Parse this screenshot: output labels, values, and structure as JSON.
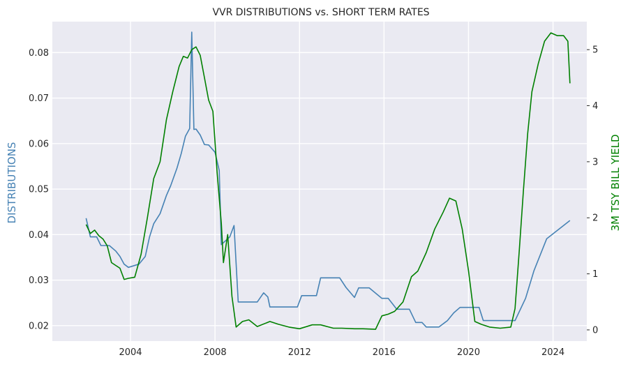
{
  "chart_data": {
    "type": "line",
    "title": "VVR DISTRIBUTIONS vs. SHORT TERM RATES",
    "xlabel": "",
    "xlim": [
      2000.3,
      2025.6
    ],
    "x_ticks": [
      2004,
      2008,
      2012,
      2016,
      2020,
      2024
    ],
    "x_tick_labels": [
      "2004",
      "2008",
      "2012",
      "2016",
      "2020",
      "2024"
    ],
    "left_axis": {
      "label": "DISTRIBUTIONS",
      "color": "#4682b4",
      "ylim": [
        0.0166,
        0.0868
      ],
      "ticks": [
        0.02,
        0.03,
        0.04,
        0.05,
        0.06,
        0.07,
        0.08
      ],
      "tick_labels": [
        "0.02",
        "0.03",
        "0.04",
        "0.05",
        "0.06",
        "0.07",
        "0.08"
      ]
    },
    "right_axis": {
      "label": "3M TSY BILL YIELD",
      "color": "#008000",
      "ylim": [
        -0.2,
        5.5
      ],
      "ticks": [
        0,
        1,
        2,
        3,
        4,
        5
      ],
      "tick_labels": [
        "0",
        "1",
        "2",
        "3",
        "4",
        "5"
      ]
    },
    "grid": true,
    "background": "#eaeaf2",
    "series": [
      {
        "name": "DISTRIBUTIONS",
        "axis": "left",
        "color": "#4682b4",
        "x": [
          2001.9,
          2002.1,
          2002.4,
          2002.6,
          2003.0,
          2003.3,
          2003.5,
          2003.7,
          2003.9,
          2004.4,
          2004.7,
          2004.9,
          2005.1,
          2005.4,
          2005.7,
          2005.9,
          2006.2,
          2006.4,
          2006.6,
          2006.8,
          2006.9,
          2007.0,
          2007.1,
          2007.3,
          2007.5,
          2007.7,
          2008.0,
          2008.2,
          2008.3,
          2008.7,
          2008.9,
          2009.1,
          2009.5,
          2010.0,
          2010.3,
          2010.5,
          2010.6,
          2011.2,
          2011.9,
          2012.1,
          2012.8,
          2013.0,
          2013.9,
          2014.2,
          2014.6,
          2014.8,
          2015.3,
          2015.9,
          2016.2,
          2016.4,
          2016.6,
          2017.2,
          2017.5,
          2017.8,
          2018.0,
          2018.6,
          2019.0,
          2019.3,
          2019.6,
          2020.5,
          2020.7,
          2022.2,
          2022.7,
          2023.1,
          2023.7,
          2024.8
        ],
        "values": [
          0.0436,
          0.0395,
          0.0395,
          0.0376,
          0.0376,
          0.0364,
          0.0352,
          0.0335,
          0.0328,
          0.0335,
          0.0352,
          0.0395,
          0.0424,
          0.0446,
          0.0486,
          0.0507,
          0.0546,
          0.0578,
          0.0616,
          0.0633,
          0.0845,
          0.0631,
          0.0632,
          0.0619,
          0.0598,
          0.0597,
          0.0581,
          0.0541,
          0.0378,
          0.0395,
          0.042,
          0.0252,
          0.0252,
          0.0252,
          0.0272,
          0.0263,
          0.0241,
          0.0241,
          0.0241,
          0.0266,
          0.0266,
          0.0305,
          0.0305,
          0.0284,
          0.0262,
          0.0283,
          0.0283,
          0.026,
          0.026,
          0.0248,
          0.0236,
          0.0236,
          0.0207,
          0.0207,
          0.0197,
          0.0197,
          0.0211,
          0.0228,
          0.024,
          0.024,
          0.0211,
          0.0211,
          0.026,
          0.0321,
          0.0391,
          0.0431
        ]
      },
      {
        "name": "3M TSY BILL YIELD",
        "axis": "right",
        "color": "#008000",
        "x": [
          2001.9,
          2002.1,
          2002.3,
          2002.5,
          2002.7,
          2002.9,
          2003.1,
          2003.3,
          2003.5,
          2003.7,
          2003.9,
          2004.2,
          2004.5,
          2004.8,
          2005.1,
          2005.4,
          2005.7,
          2006.0,
          2006.3,
          2006.5,
          2006.7,
          2006.9,
          2007.1,
          2007.3,
          2007.5,
          2007.7,
          2007.9,
          2008.1,
          2008.3,
          2008.4,
          2008.6,
          2008.8,
          2009.0,
          2009.3,
          2009.6,
          2010.0,
          2010.6,
          2011.0,
          2011.5,
          2012.0,
          2012.6,
          2013.0,
          2013.6,
          2014.0,
          2014.6,
          2015.0,
          2015.6,
          2015.9,
          2016.2,
          2016.5,
          2016.9,
          2017.3,
          2017.6,
          2018.0,
          2018.4,
          2018.8,
          2019.1,
          2019.4,
          2019.7,
          2020.0,
          2020.3,
          2020.6,
          2021.0,
          2021.5,
          2022.0,
          2022.2,
          2022.4,
          2022.6,
          2022.8,
          2023.0,
          2023.3,
          2023.6,
          2023.9,
          2024.2,
          2024.5,
          2024.7,
          2024.8
        ],
        "values": [
          1.88,
          1.72,
          1.78,
          1.68,
          1.62,
          1.5,
          1.2,
          1.15,
          1.1,
          0.9,
          0.92,
          0.94,
          1.35,
          2.0,
          2.7,
          3.0,
          3.75,
          4.25,
          4.7,
          4.88,
          4.85,
          5.0,
          5.05,
          4.9,
          4.5,
          4.1,
          3.9,
          2.8,
          1.9,
          1.2,
          1.7,
          0.6,
          0.05,
          0.15,
          0.18,
          0.06,
          0.15,
          0.1,
          0.05,
          0.02,
          0.09,
          0.09,
          0.03,
          0.03,
          0.02,
          0.02,
          0.01,
          0.25,
          0.28,
          0.33,
          0.5,
          0.95,
          1.05,
          1.38,
          1.8,
          2.1,
          2.35,
          2.3,
          1.8,
          1.05,
          0.15,
          0.1,
          0.05,
          0.03,
          0.05,
          0.38,
          1.4,
          2.5,
          3.5,
          4.25,
          4.75,
          5.15,
          5.3,
          5.25,
          5.25,
          5.15,
          4.4
        ]
      }
    ]
  }
}
